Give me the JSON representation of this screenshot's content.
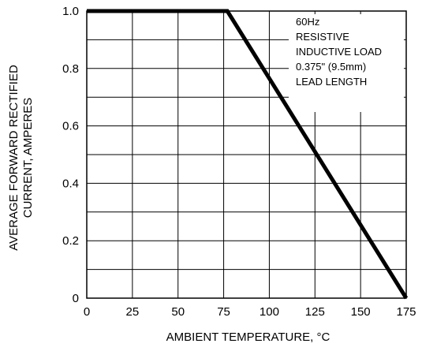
{
  "chart_data": {
    "type": "line",
    "title": "",
    "xlabel": "AMBIENT TEMPERATURE, °C",
    "ylabel_lines": [
      "AVERAGE FORWARD RECTIFIED",
      "CURRENT, AMPERES"
    ],
    "xlim": [
      0,
      175
    ],
    "ylim": [
      0,
      1.0
    ],
    "x_ticks": [
      0,
      25,
      50,
      75,
      100,
      125,
      150,
      175
    ],
    "x_tick_labels": [
      "0",
      "25",
      "50",
      "75",
      "100",
      "125",
      "150",
      "175"
    ],
    "y_ticks": [
      0,
      0.2,
      0.4,
      0.6,
      0.8,
      1.0
    ],
    "y_tick_labels": [
      "0",
      "0.2",
      "0.4",
      "0.6",
      "0.8",
      "1.0"
    ],
    "x_grid": [
      0,
      25,
      50,
      75,
      100,
      125,
      150,
      175
    ],
    "y_grid": [
      0,
      0.1,
      0.2,
      0.3,
      0.4,
      0.5,
      0.6,
      0.7,
      0.8,
      0.9,
      1.0
    ],
    "grid": true,
    "series": [
      {
        "x": [
          0,
          77,
          175
        ],
        "y": [
          1.0,
          1.0,
          0.0
        ]
      }
    ],
    "annotation_lines": [
      "60Hz",
      "RESISTIVE",
      "INDUCTIVE LOAD",
      "0.375\" (9.5mm)",
      "LEAD LENGTH"
    ],
    "annotation_position": "top-right",
    "colors": {
      "line": "#000000",
      "grid": "#000000",
      "background": "#ffffff"
    }
  }
}
